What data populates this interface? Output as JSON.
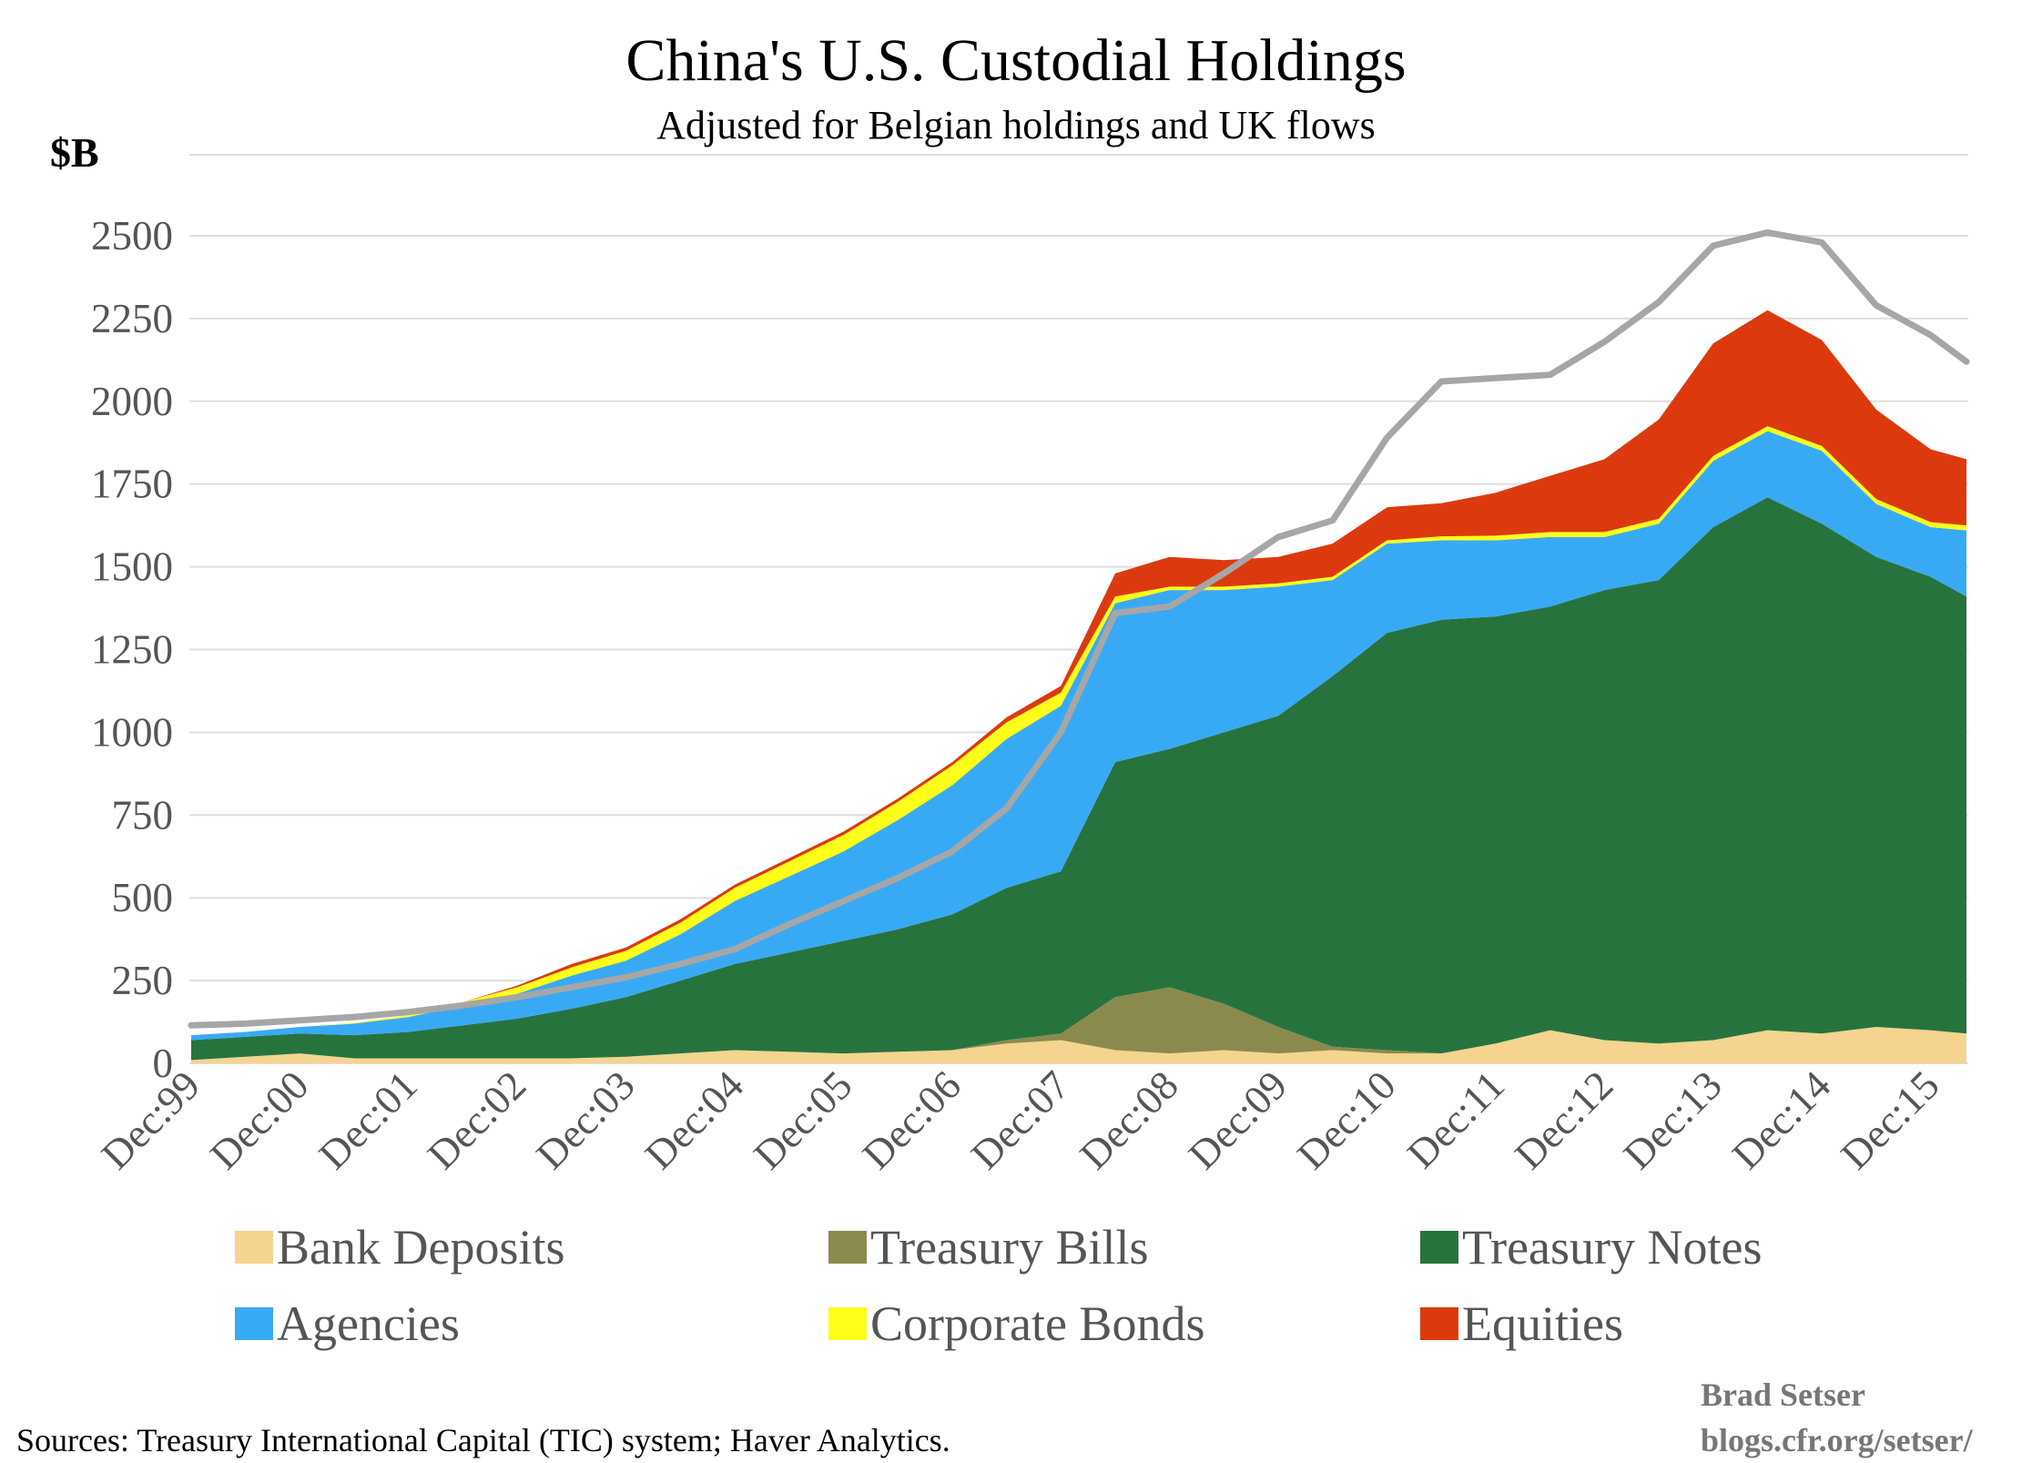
{
  "chart_data": {
    "type": "area",
    "stacked": true,
    "title": "China's U.S. Custodial Holdings",
    "subtitle": "Adjusted for Belgian holdings and UK flows",
    "ylabel": "$B",
    "ylim": [
      0,
      2500
    ],
    "yticks": [
      0,
      250,
      500,
      750,
      1000,
      1250,
      1500,
      1750,
      2000,
      2250,
      2500
    ],
    "grid": true,
    "legend_position": "bottom",
    "x": [
      1999.92,
      2000.42,
      2000.92,
      2001.42,
      2001.92,
      2002.42,
      2002.92,
      2003.42,
      2003.92,
      2004.42,
      2004.92,
      2005.42,
      2005.92,
      2006.42,
      2006.92,
      2007.42,
      2007.92,
      2008.42,
      2008.92,
      2009.42,
      2009.92,
      2010.42,
      2010.92,
      2011.42,
      2011.92,
      2012.42,
      2012.92,
      2013.42,
      2013.92,
      2014.42,
      2014.92,
      2015.42,
      2015.92,
      2016.25
    ],
    "x_tick_labels": [
      "Dec:99",
      "Dec:00",
      "Dec:01",
      "Dec:02",
      "Dec:03",
      "Dec:04",
      "Dec:05",
      "Dec:06",
      "Dec:07",
      "Dec:08",
      "Dec:09",
      "Dec:10",
      "Dec:11",
      "Dec:12",
      "Dec:13",
      "Dec:14",
      "Dec:15"
    ],
    "x_tick_values": [
      1999.92,
      2000.92,
      2001.92,
      2002.92,
      2003.92,
      2004.92,
      2005.92,
      2006.92,
      2007.92,
      2008.92,
      2009.92,
      2010.92,
      2011.92,
      2012.92,
      2013.92,
      2014.92,
      2015.92
    ],
    "series": [
      {
        "name": "Bank Deposits",
        "color": "#f5d48f",
        "values": [
          10,
          20,
          30,
          15,
          15,
          15,
          15,
          15,
          20,
          30,
          40,
          35,
          30,
          35,
          40,
          60,
          70,
          40,
          30,
          40,
          30,
          40,
          30,
          30,
          60,
          100,
          70,
          60,
          70,
          100,
          90,
          110,
          100,
          90
        ]
      },
      {
        "name": "Treasury Bills",
        "color": "#8b8a4e",
        "values": [
          0,
          0,
          0,
          0,
          0,
          0,
          0,
          0,
          0,
          0,
          0,
          0,
          0,
          0,
          0,
          10,
          20,
          160,
          200,
          140,
          80,
          10,
          10,
          0,
          0,
          0,
          0,
          0,
          0,
          0,
          0,
          0,
          0,
          0
        ]
      },
      {
        "name": "Treasury Notes",
        "color": "#27733e",
        "values": [
          60,
          60,
          60,
          70,
          80,
          100,
          120,
          150,
          180,
          220,
          260,
          300,
          340,
          370,
          410,
          460,
          490,
          710,
          720,
          820,
          940,
          1120,
          1260,
          1310,
          1290,
          1280,
          1360,
          1400,
          1550,
          1610,
          1540,
          1420,
          1370,
          1320
        ]
      },
      {
        "name": "Agencies",
        "color": "#38aaf5",
        "values": [
          15,
          15,
          20,
          35,
          45,
          60,
          75,
          100,
          110,
          140,
          190,
          230,
          270,
          330,
          390,
          450,
          500,
          480,
          480,
          430,
          390,
          290,
          270,
          240,
          230,
          210,
          160,
          170,
          200,
          200,
          220,
          160,
          150,
          200
        ]
      },
      {
        "name": "Corporate Bonds",
        "color": "#ffff1a",
        "values": [
          0,
          0,
          0,
          2,
          5,
          10,
          20,
          25,
          30,
          35,
          40,
          45,
          50,
          55,
          60,
          50,
          40,
          20,
          10,
          10,
          10,
          10,
          10,
          12,
          14,
          15,
          15,
          15,
          15,
          15,
          15,
          15,
          15,
          15
        ]
      },
      {
        "name": "Equities",
        "color": "#dc3a0e",
        "values": [
          0,
          0,
          0,
          0,
          0,
          0,
          5,
          10,
          10,
          10,
          10,
          10,
          10,
          10,
          10,
          15,
          20,
          70,
          90,
          80,
          80,
          100,
          100,
          100,
          130,
          170,
          220,
          300,
          340,
          350,
          320,
          270,
          220,
          200
        ]
      },
      {
        "name": "",
        "color": "#a6a6a6",
        "kind": "line",
        "values": [
          115,
          120,
          130,
          140,
          155,
          175,
          200,
          230,
          260,
          300,
          345,
          420,
          490,
          560,
          640,
          770,
          1000,
          1360,
          1380,
          1480,
          1590,
          1640,
          1890,
          2060,
          2070,
          2080,
          2180,
          2300,
          2470,
          2510,
          2480,
          2290,
          2200,
          2120
        ]
      }
    ]
  },
  "source_note": "Sources: Treasury International Capital (TIC) system; Haver Analytics.",
  "credit_line1": "Brad Setser",
  "credit_line2": "blogs.cfr.org/setser/"
}
